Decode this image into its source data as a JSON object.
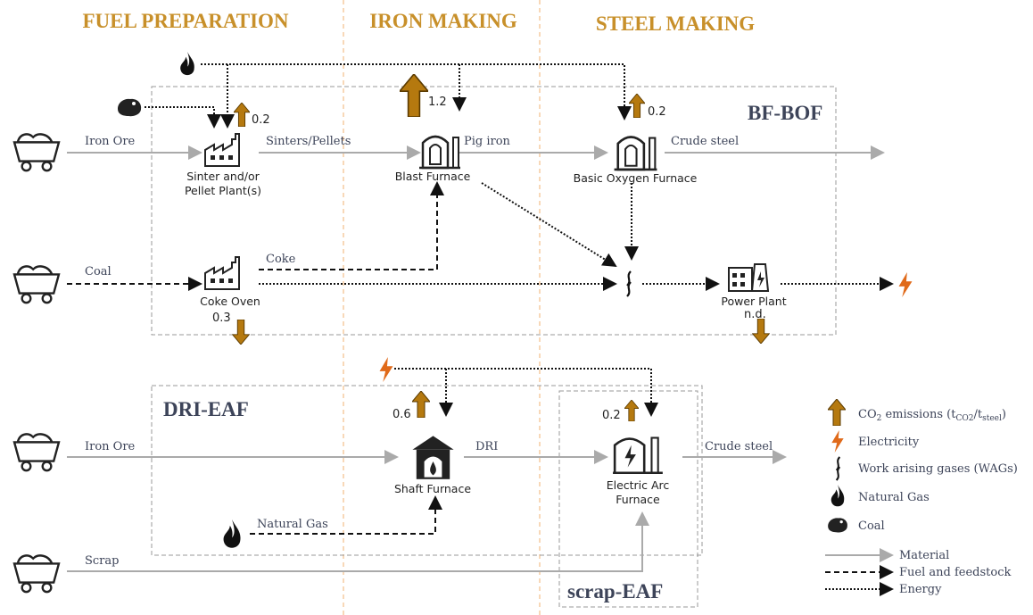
{
  "sections": [
    "FUEL PREPARATION",
    "IRON MAKING",
    "STEEL MAKING"
  ],
  "routes": [
    "BF-BOF",
    "DRI-EAF",
    "scrap-EAF"
  ],
  "nodes": [
    {
      "lines": [
        "Sinter and/or",
        "Pellet Plant(s)"
      ]
    },
    {
      "lines": [
        "Blast Furnace"
      ]
    },
    {
      "lines": [
        "Basic Oxygen Furnace"
      ]
    },
    {
      "lines": [
        "Coke Oven"
      ]
    },
    {
      "lines": [
        "Power Plant"
      ]
    },
    {
      "lines": [
        "Shaft Furnace"
      ]
    },
    {
      "lines": [
        "Electric Arc",
        "Furnace"
      ]
    }
  ],
  "flows": [
    "Iron Ore",
    "Sinters/Pellets",
    "Pig iron",
    "Crude steel",
    "Coal",
    "Coke",
    "Iron Ore",
    "DRI",
    "Crude steel",
    "Natural Gas",
    "Scrap"
  ],
  "emissions": [
    "0.2",
    "1.2",
    "0.2",
    "0.3",
    "n.d.",
    "0.6",
    "0.2"
  ],
  "legend": {
    "co2": [
      "CO",
      "2",
      " emissions (t",
      "CO2",
      "/t",
      "steel",
      ")"
    ],
    "items": [
      "Electricity",
      "Work arising gases (WAGs)",
      "Natural Gas",
      "Coal"
    ],
    "lines": [
      "Material",
      "Fuel and feedstock",
      "Energy"
    ]
  }
}
